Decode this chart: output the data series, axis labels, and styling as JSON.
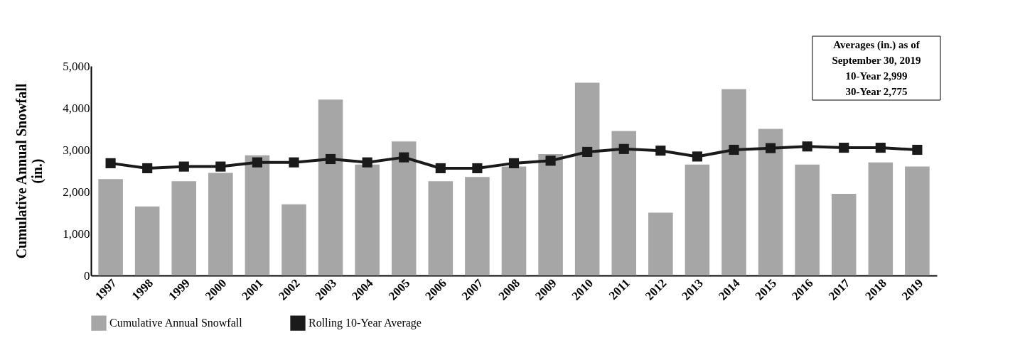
{
  "chart_data": {
    "type": "bar",
    "ylabel": "Cumulative Annual Snowfall (in.)",
    "categories": [
      "1997",
      "1998",
      "1999",
      "2000",
      "2001",
      "2002",
      "2003",
      "2004",
      "2005",
      "2006",
      "2007",
      "2008",
      "2009",
      "2010",
      "2011",
      "2012",
      "2013",
      "2014",
      "2015",
      "2016",
      "2017",
      "2018",
      "2019"
    ],
    "series": [
      {
        "name": "Cumulative Annual Snowfall",
        "color": "#a6a6a6",
        "values": [
          2300,
          1650,
          2250,
          2450,
          2870,
          1700,
          4200,
          2650,
          3200,
          2250,
          2350,
          2600,
          2900,
          4600,
          3450,
          1500,
          2650,
          4450,
          3500,
          2650,
          1950,
          2700,
          2600
        ]
      },
      {
        "name": "Rolling 10-Year Average",
        "type": "line",
        "color": "#1a1a1a",
        "values": [
          2680,
          2560,
          2600,
          2600,
          2700,
          2700,
          2780,
          2700,
          2820,
          2560,
          2560,
          2680,
          2740,
          2950,
          3020,
          2980,
          2840,
          3000,
          3040,
          3080,
          3050,
          3050,
          3000
        ]
      }
    ],
    "ylim": [
      0,
      5000
    ],
    "yticks": [
      0,
      {
        "value": 1000,
        "label": "1,000"
      },
      {
        "value": 2000,
        "label": "2,000"
      },
      {
        "value": 3000,
        "label": "3,000"
      },
      {
        "value": 4000,
        "label": "4,000"
      },
      {
        "value": 5000,
        "label": "5,000"
      }
    ],
    "grid": false,
    "legend": "bottom",
    "marker": "square",
    "line_style": "solid",
    "annotations": [
      "Averages (in.) as of",
      "September 30, 2019",
      "10-Year      2,999",
      "30-Year      2,775"
    ]
  }
}
